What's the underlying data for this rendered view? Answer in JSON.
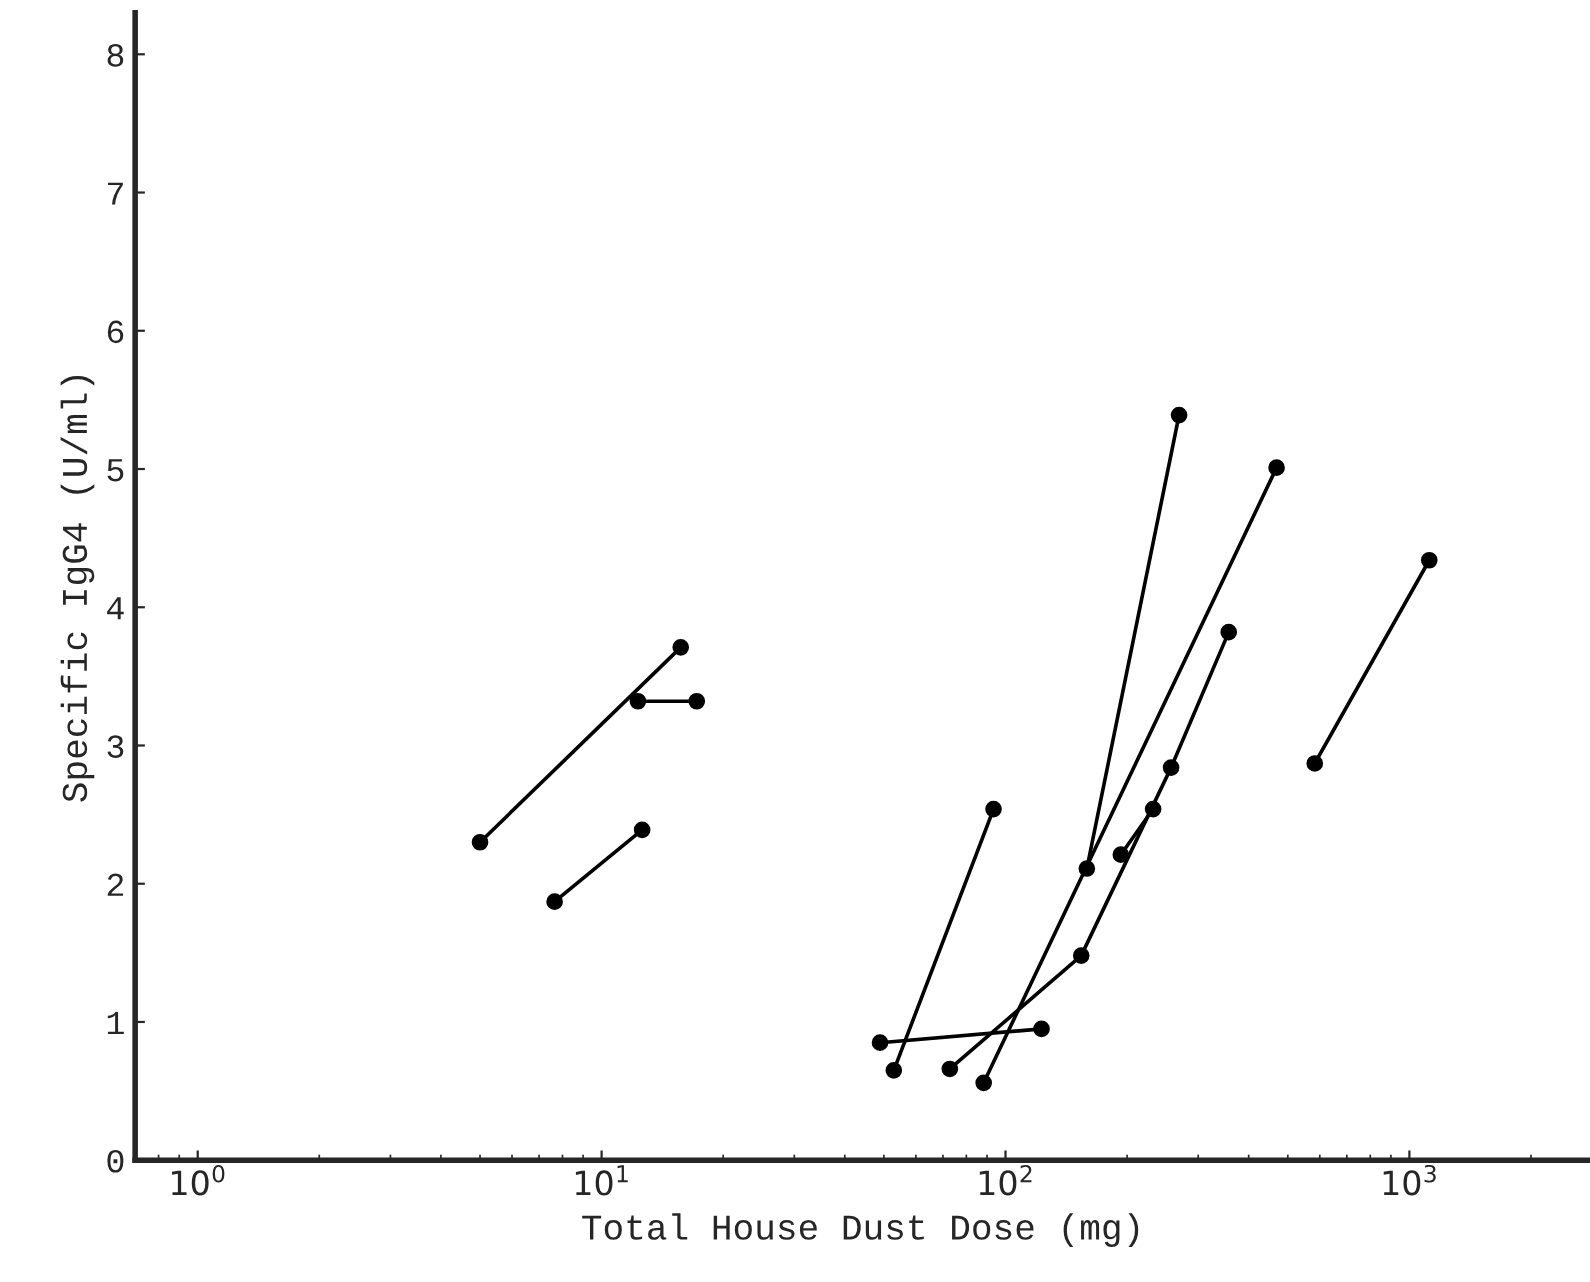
{
  "chart_data": {
    "type": "line",
    "xlabel": "Total House Dust Dose (mg)",
    "ylabel": "Specific IgG4 (U/ml)",
    "log": "x",
    "xlim": [
      0.7,
      2800
    ],
    "xticks": [
      {
        "value": 1,
        "label": "10$^{0}$"
      },
      {
        "value": 10,
        "label": "10$^{1}$"
      },
      {
        "value": 100,
        "label": "10$^{2}$"
      },
      {
        "value": 1000,
        "label": "10$^{3}$"
      }
    ],
    "ylim": [
      0,
      8.3
    ],
    "yticks": [
      0,
      1,
      2,
      3,
      4,
      5,
      6,
      7,
      8
    ],
    "grid": false,
    "legend": false,
    "marker": "circle",
    "line_style": "solid",
    "series": [
      {
        "color": "#000000",
        "x": [
          5.0,
          15.7
        ],
        "values": [
          2.3,
          3.71
        ]
      },
      {
        "color": "#000000",
        "x": [
          12.3,
          17.2
        ],
        "values": [
          3.32,
          3.32
        ]
      },
      {
        "color": "#000000",
        "x": [
          7.65,
          12.6
        ],
        "values": [
          1.87,
          2.39
        ]
      },
      {
        "color": "#000000",
        "x": [
          52.9,
          93.4
        ],
        "values": [
          0.65,
          2.54
        ]
      },
      {
        "color": "#000000",
        "x": [
          48.9,
          122.8
        ],
        "values": [
          0.85,
          0.95
        ]
      },
      {
        "color": "#000000",
        "x": [
          72.8,
          154,
          257,
          357
        ],
        "values": [
          0.66,
          1.48,
          2.84,
          3.82
        ]
      },
      {
        "color": "#000000",
        "x": [
          88.3,
          469
        ],
        "values": [
          0.56,
          5.01
        ]
      },
      {
        "color": "#000000",
        "x": [
          159,
          269
        ],
        "values": [
          2.11,
          5.39
        ]
      },
      {
        "color": "#000000",
        "x": [
          193,
          232
        ],
        "values": [
          2.21,
          2.54
        ]
      },
      {
        "color": "#000000",
        "x": [
          583,
          1120
        ],
        "values": [
          2.87,
          4.34
        ]
      }
    ]
  }
}
